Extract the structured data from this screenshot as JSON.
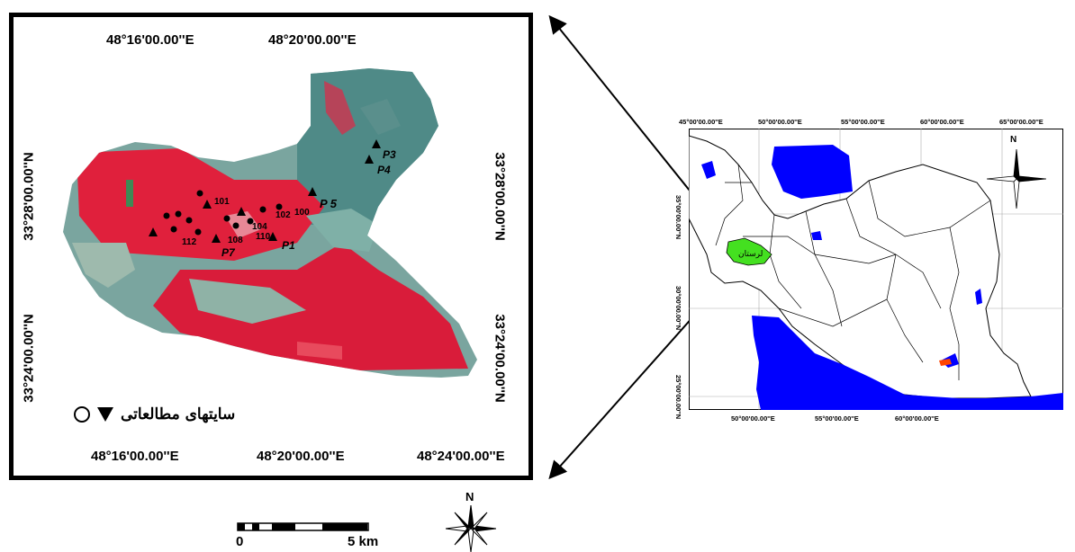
{
  "study_area": {
    "top_longitudes": [
      "48°16'00.00''E",
      "48°20'00.00''E"
    ],
    "bottom_longitudes": [
      "48°16'00.00''E",
      "48°20'00.00''E",
      "48°24'00.00''E"
    ],
    "left_latitudes": [
      "33°28'00.00''N",
      "33°24'00.00''N"
    ],
    "right_latitudes": [
      "33°28'00.00''N",
      "33°24'00.00''N"
    ],
    "legend_label": "سایتهای مطالعاتی",
    "site_labels": [
      "P 5",
      "P1",
      "P7",
      "P4",
      "P3",
      "101",
      "102",
      "100",
      "104",
      "110",
      "108",
      "112"
    ],
    "scale": {
      "start": "0",
      "end": "5 km"
    },
    "north_label": "N"
  },
  "iran_map": {
    "top_longitudes": [
      "45°00'00.00''E",
      "50°00'00.00''E",
      "55°00'00.00''E",
      "60°00'00.00''E",
      "65°00'00.00''E"
    ],
    "bottom_longitudes": [
      "50°00'00.00''E",
      "55°00'00.00''E",
      "60°00'00.00''E"
    ],
    "left_latitudes": [
      "35°00'00.00''N",
      "30°00'00.00''N",
      "25°00'00.00''N"
    ],
    "province_label": "لرستان",
    "north_label": "N"
  },
  "colors": {
    "vegetation_red": "#e0203c",
    "terrain_teal": "#6fa8a0",
    "water_blue": "#0000ff",
    "province_green": "#44e020"
  }
}
